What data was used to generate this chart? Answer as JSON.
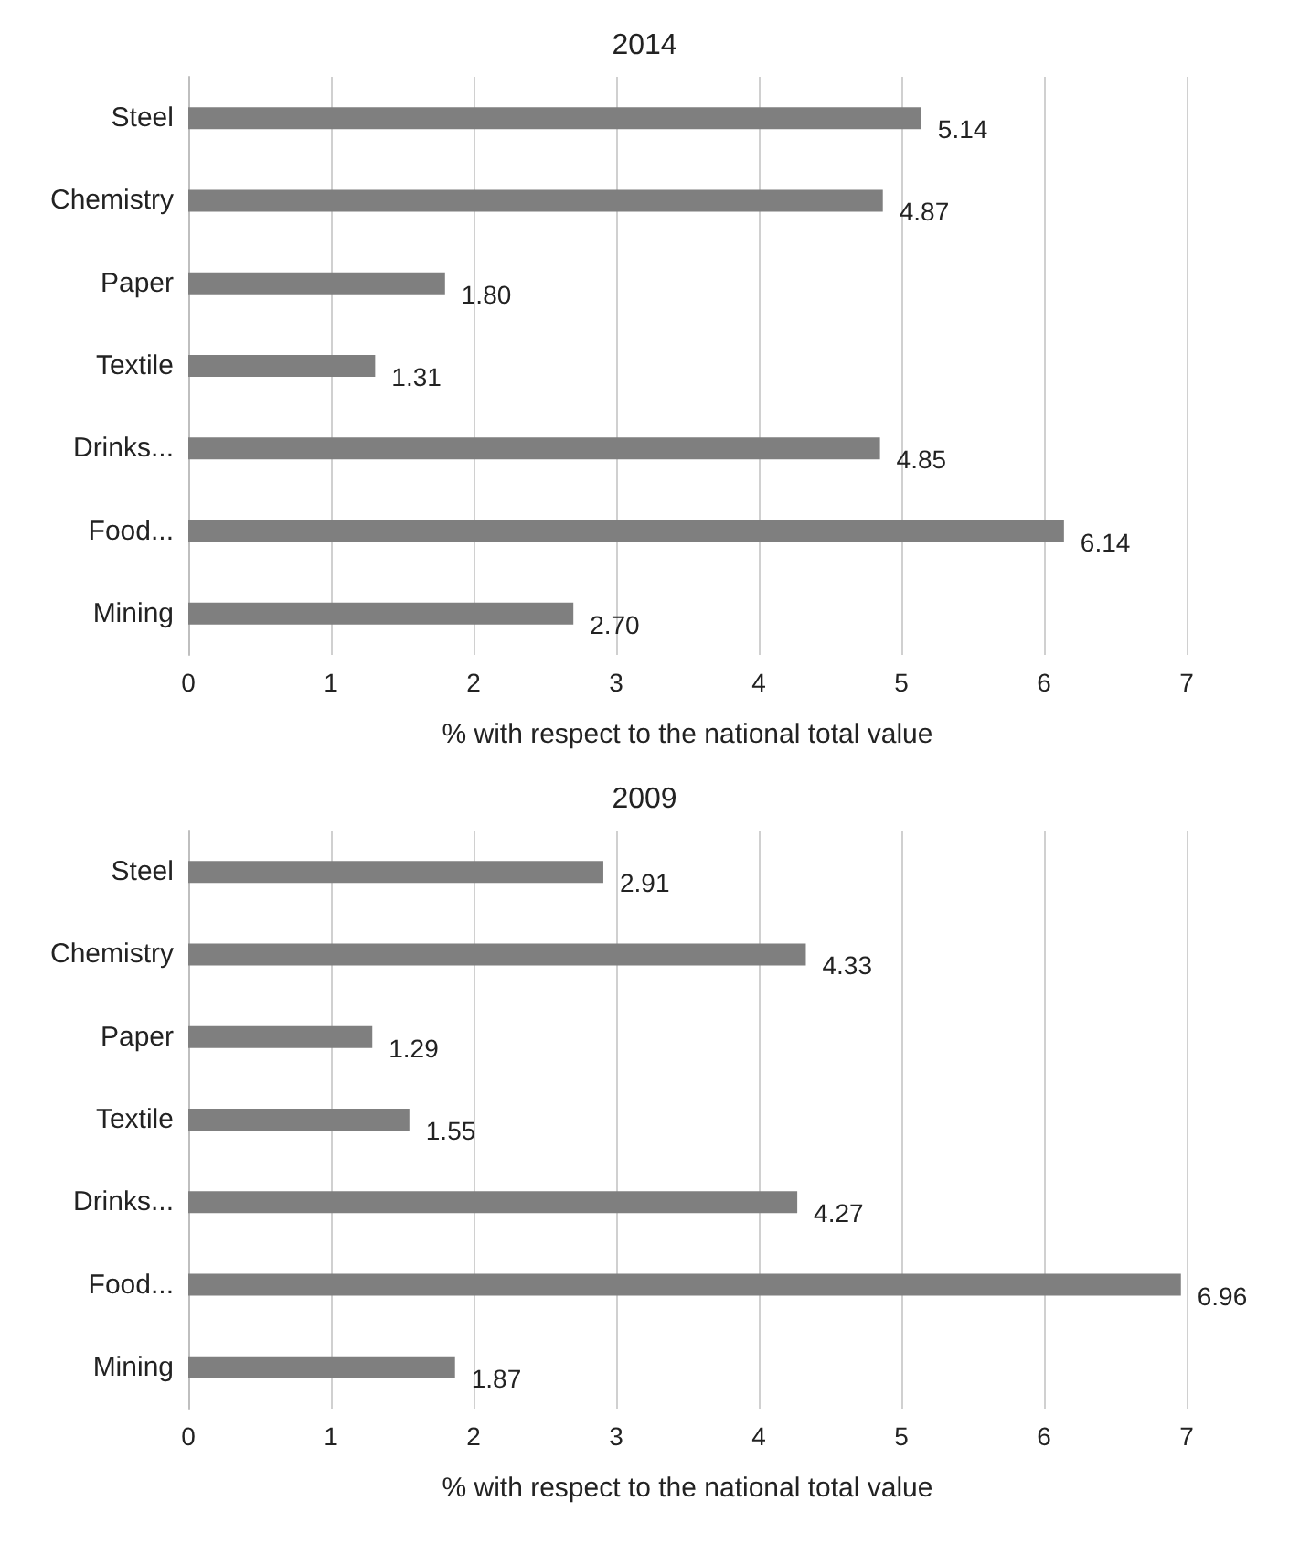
{
  "chart_data": [
    {
      "type": "bar",
      "title": "2014",
      "xlabel": "% with respect to the national total value",
      "orientation": "horizontal",
      "categories": [
        "Steel",
        "Chemistry",
        "Paper",
        "Textile",
        "Drinks...",
        "Food...",
        "Mining"
      ],
      "values": [
        5.14,
        4.87,
        1.8,
        1.31,
        4.85,
        6.14,
        2.7
      ],
      "value_labels": [
        "5.14",
        "4.87",
        "1.80",
        "1.31",
        "4.85",
        "6.14",
        "2.70"
      ],
      "color": "#7f7f7f",
      "xlim": [
        0,
        7
      ],
      "xticks": [
        0,
        1,
        2,
        3,
        4,
        5,
        6,
        7
      ],
      "grid": "x"
    },
    {
      "type": "bar",
      "title": "2009",
      "xlabel": "% with respect to the national total value",
      "orientation": "horizontal",
      "categories": [
        "Steel",
        "Chemistry",
        "Paper",
        "Textile",
        "Drinks...",
        "Food...",
        "Mining"
      ],
      "values": [
        2.91,
        4.33,
        1.29,
        1.55,
        4.27,
        6.96,
        1.87
      ],
      "value_labels": [
        "2.91",
        "4.33",
        "1.29",
        "1.55",
        "4.27",
        "6.96",
        "1.87"
      ],
      "color": "#7f7f7f",
      "xlim": [
        0,
        7
      ],
      "xticks": [
        0,
        1,
        2,
        3,
        4,
        5,
        6,
        7
      ],
      "grid": "x"
    }
  ]
}
